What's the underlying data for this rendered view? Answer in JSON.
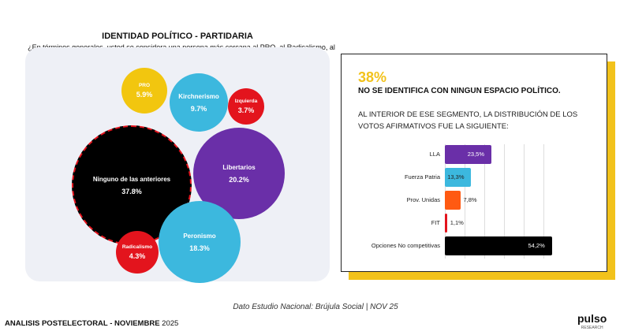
{
  "left": {
    "title": "IDENTIDAD POLÍTICO - PARTIDARIA",
    "question": "¿En términos generales, usted se considera una persona más cercana al PRO, al Radicalismo, al Peronismo, al Kirchnerismo, a los libertarios o a la izquierda?",
    "bubbles": [
      {
        "label": "PRO",
        "value": "5.9%",
        "color": "#f2c60f"
      },
      {
        "label": "Kirchnerismo",
        "value": "9.7%",
        "color": "#3cb8de"
      },
      {
        "label": "Izquierda",
        "value": "3.7%",
        "color": "#e3141d"
      },
      {
        "label": "Ninguno de las anteriores",
        "value": "37.8%",
        "color": "#000000"
      },
      {
        "label": "Libertarios",
        "value": "20.2%",
        "color": "#6a2fa8"
      },
      {
        "label": "Radicalismo",
        "value": "4.3%",
        "color": "#e3141d"
      },
      {
        "label": "Peronismo",
        "value": "18.3%",
        "color": "#3cb8de"
      }
    ]
  },
  "right": {
    "pct": "38%",
    "headline": "NO SE IDENTIFICA CON NINGUN ESPACIO POLÍTICO.",
    "subtitle": "AL INTERIOR DE ESE SEGMENTO, LA DISTRIBUCIÓN DE LOS VOTOS AFIRMATIVOS FUE LA SIGUIENTE:"
  },
  "chart_data": {
    "type": "bar",
    "orientation": "horizontal",
    "categories": [
      "LLA",
      "Fuerza Patria",
      "Prov. Unidas",
      "FIT",
      "Opciones No competitivas"
    ],
    "values": [
      23.5,
      13.3,
      7.8,
      1.1,
      54.2
    ],
    "labels": [
      "23,5%",
      "13,3%",
      "7,8%",
      "1,1%",
      "54,2%"
    ],
    "colors": [
      "#6a2fa8",
      "#3cb8de",
      "#ff5a12",
      "#e3141d",
      "#000000"
    ],
    "xlim": [
      0,
      55
    ]
  },
  "footnote": "Dato Estudio Nacional: Brújula Social | NOV 25",
  "footer": {
    "bold": "ANALISIS POSTELECTORAL - NOVIEMBRE",
    "year": "2025"
  },
  "logo": {
    "name": "pulso",
    "sub": "RESEARCH"
  }
}
